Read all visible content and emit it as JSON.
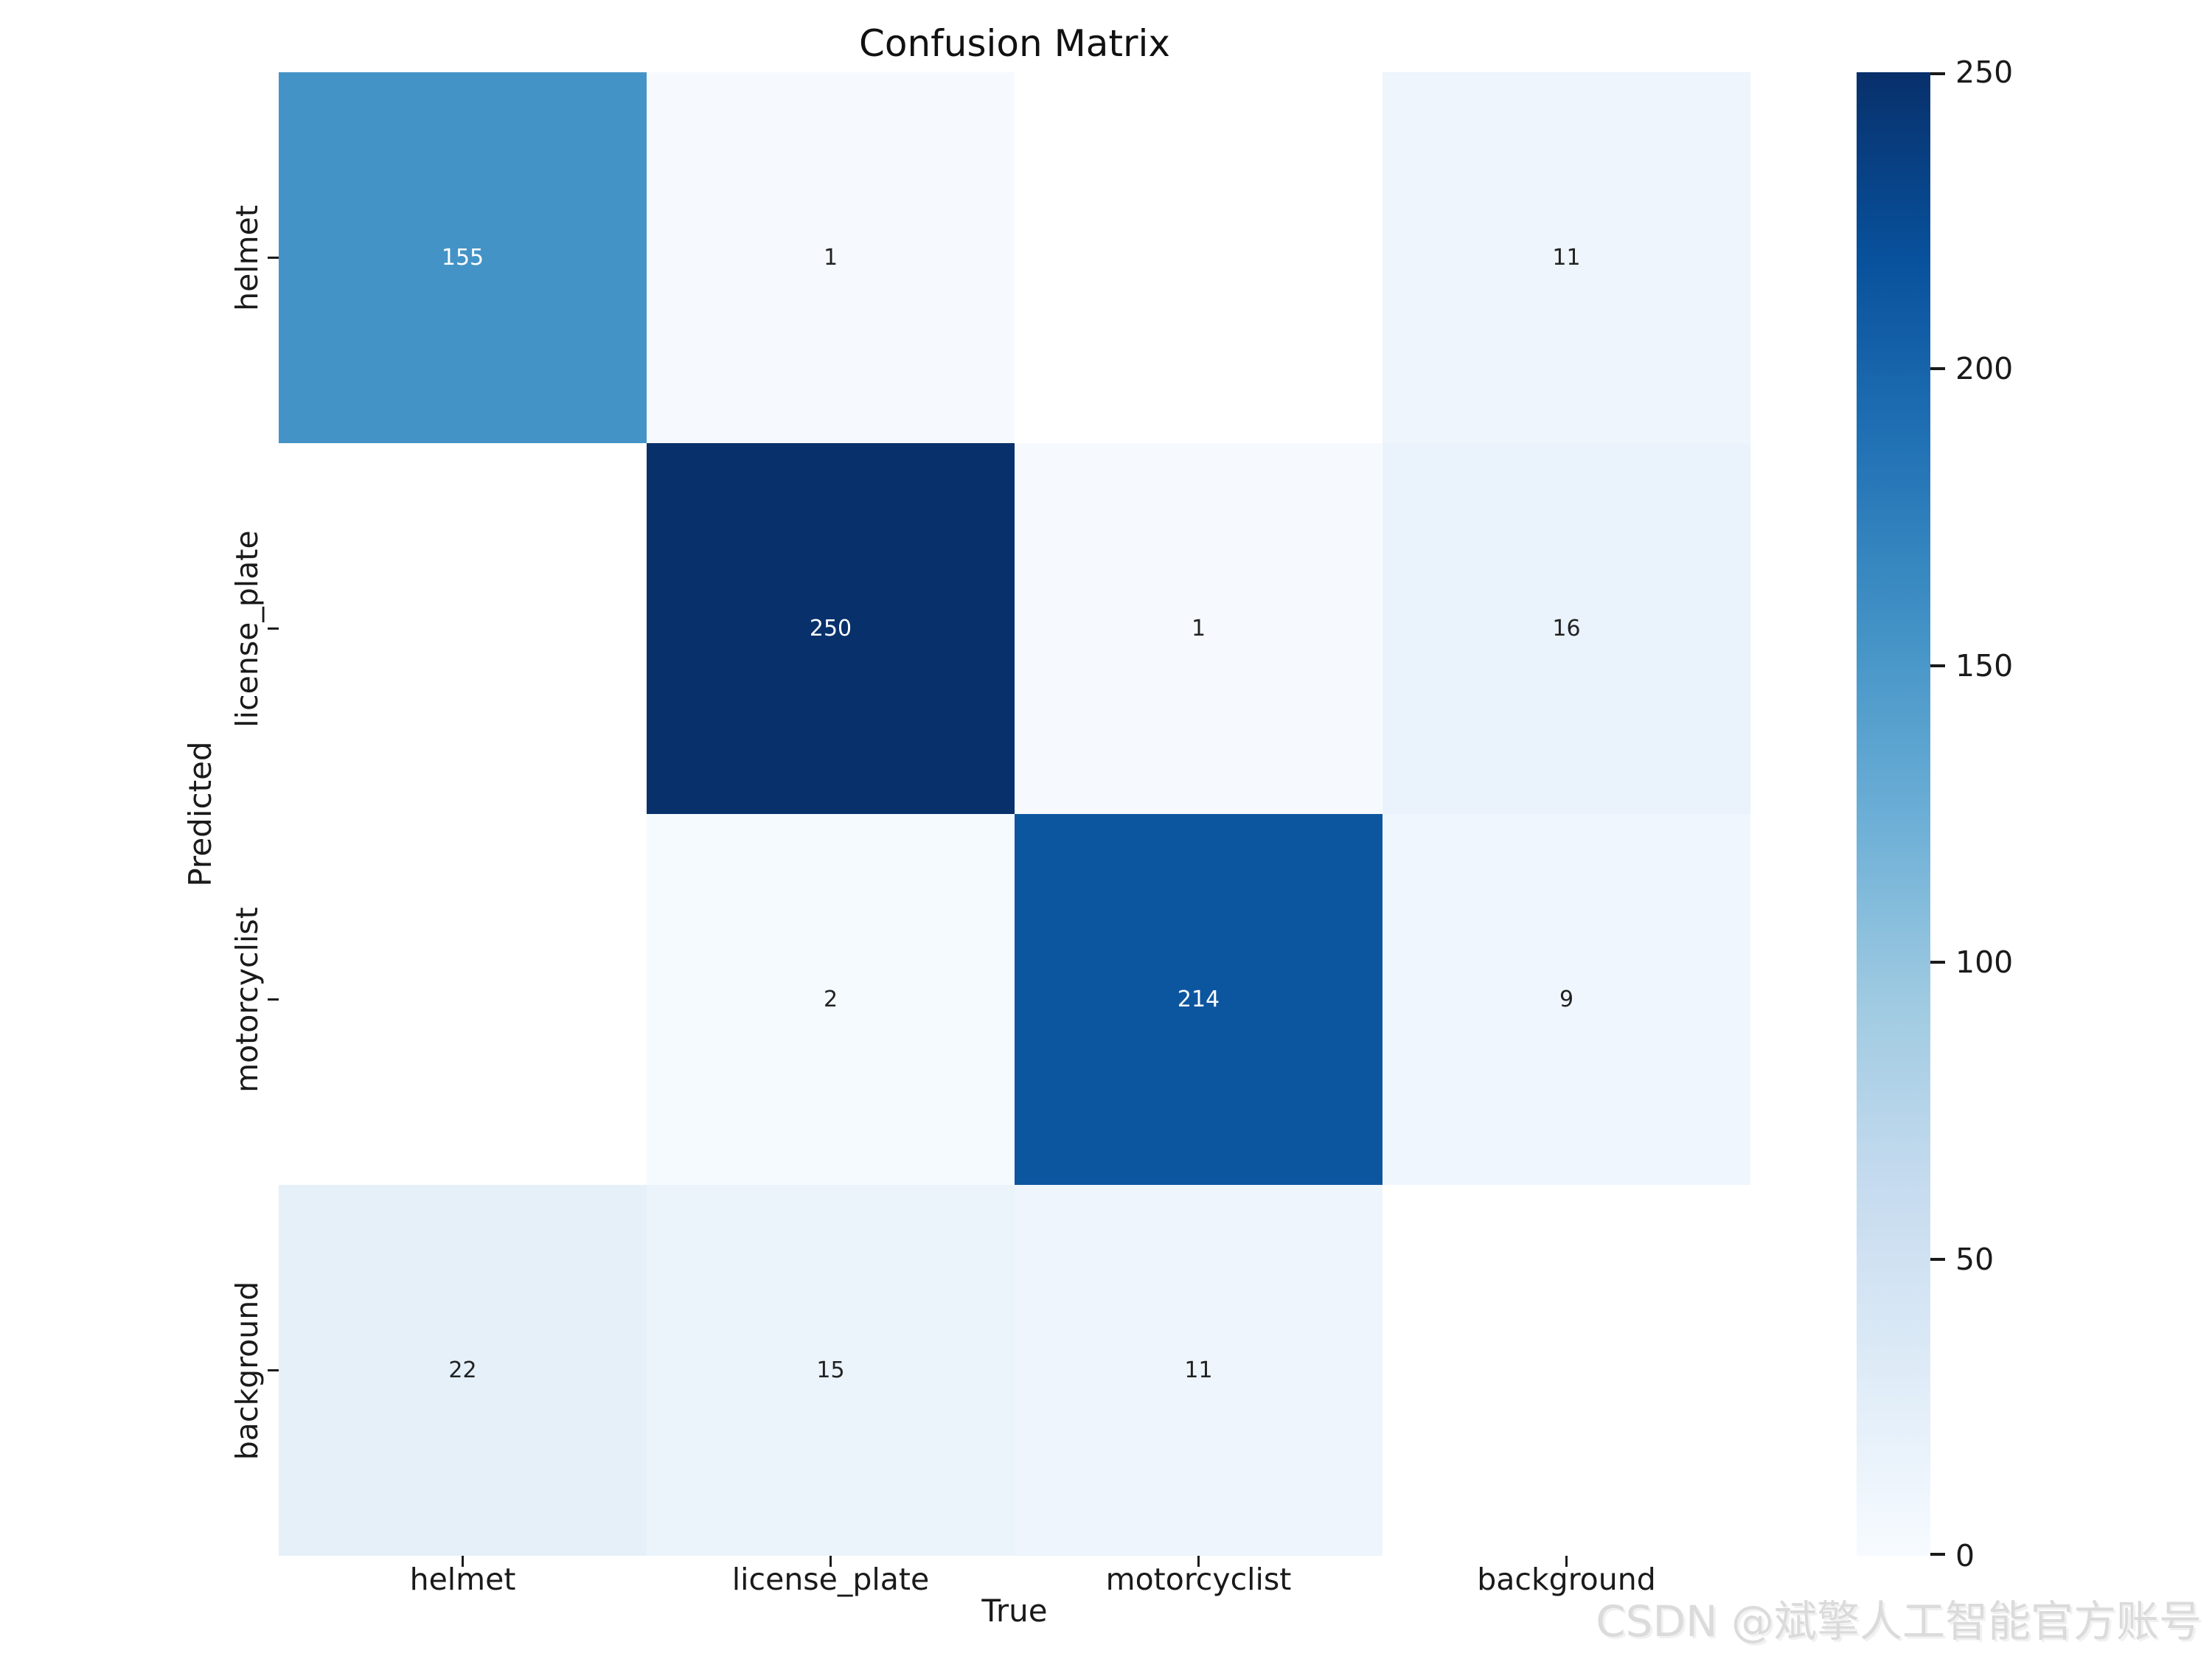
{
  "chart_data": {
    "type": "heatmap",
    "title": "Confusion Matrix",
    "xlabel": "True",
    "ylabel": "Predicted",
    "x_categories": [
      "helmet",
      "license_plate",
      "motorcyclist",
      "background"
    ],
    "y_categories": [
      "helmet",
      "license_plate",
      "motorcyclist",
      "background"
    ],
    "matrix": [
      [
        155,
        1,
        null,
        11
      ],
      [
        null,
        250,
        1,
        16
      ],
      [
        null,
        2,
        214,
        9
      ],
      [
        22,
        15,
        11,
        null
      ]
    ],
    "empty_cell_color": "#ffffff",
    "annotation_text_light": "#ffffff",
    "annotation_text_dark": "#222222",
    "colorbar": {
      "min": 0,
      "max": 250,
      "ticks": [
        0,
        50,
        100,
        150,
        200,
        250
      ],
      "position": "right"
    },
    "colormap": {
      "name": "Blues",
      "stops": [
        {
          "t": 0.0,
          "c": "#f7fbff"
        },
        {
          "t": 0.125,
          "c": "#deebf7"
        },
        {
          "t": 0.25,
          "c": "#c6dbef"
        },
        {
          "t": 0.375,
          "c": "#9ecae1"
        },
        {
          "t": 0.5,
          "c": "#6baed6"
        },
        {
          "t": 0.625,
          "c": "#4292c6"
        },
        {
          "t": 0.75,
          "c": "#2171b5"
        },
        {
          "t": 0.875,
          "c": "#08519c"
        },
        {
          "t": 1.0,
          "c": "#08306b"
        }
      ]
    },
    "grid": false
  },
  "watermark": {
    "text": "CSDN @斌擎人工智能官方账号",
    "color": "#dbdbdb"
  }
}
